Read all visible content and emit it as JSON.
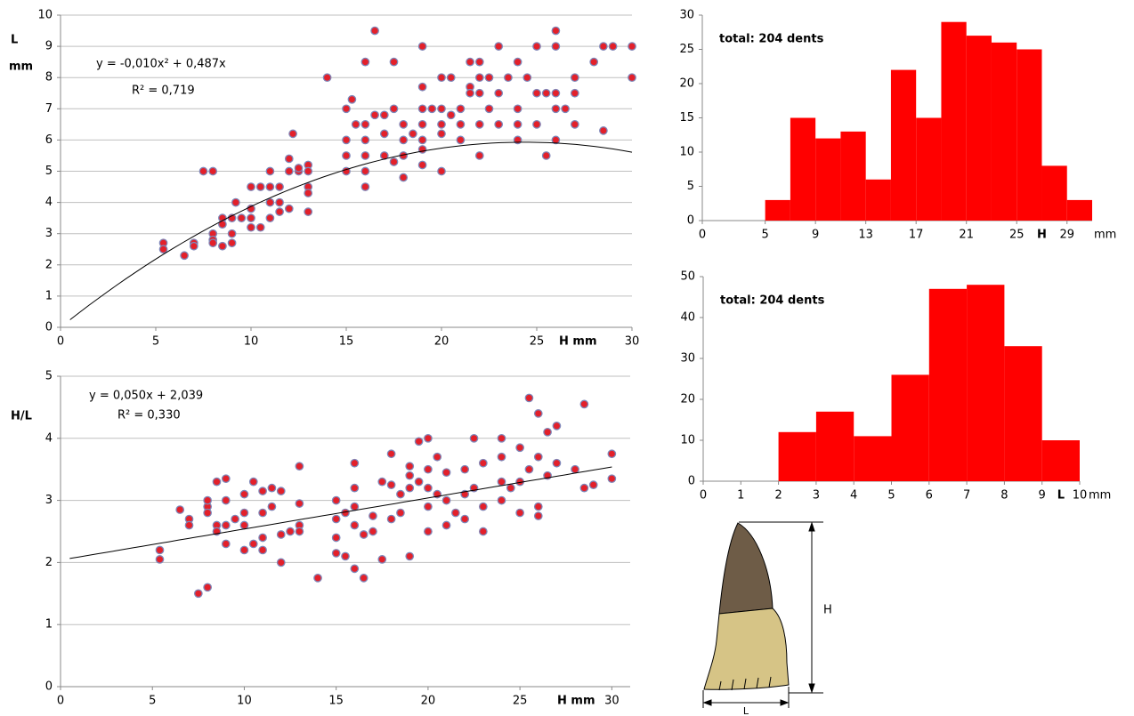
{
  "chart_data": [
    {
      "type": "scatter",
      "x_label": "H mm",
      "y_label": "L",
      "y_unit": "mm",
      "equation": "y = -0,010x² + 0,487x",
      "r_squared": "R² = 0,719",
      "trendline": {
        "coefficients": [
          -0.01,
          0.487,
          0
        ]
      },
      "xlim": [
        0,
        30
      ],
      "xticks": [
        0,
        5,
        10,
        15,
        20,
        25,
        30
      ],
      "ylim": [
        0,
        10
      ],
      "yticks": [
        0,
        1,
        2,
        3,
        4,
        5,
        6,
        7,
        8,
        9,
        10
      ],
      "grid": true,
      "color": "#e3202a",
      "edge_color": "#7f86b8",
      "x": [
        5.4,
        5.4,
        6.5,
        7,
        7,
        7.5,
        8,
        8,
        8,
        8,
        8.5,
        8.5,
        8.5,
        9,
        9,
        9,
        9.2,
        9.5,
        10,
        10,
        10,
        10,
        10.5,
        10.5,
        11,
        11,
        11,
        11,
        11.5,
        11.5,
        11.5,
        12,
        12,
        12,
        12.2,
        12.5,
        12.5,
        13,
        13,
        13,
        13,
        13,
        14,
        15,
        15,
        15,
        15,
        15.3,
        15.5,
        16,
        16,
        16,
        16,
        16,
        16,
        16.5,
        16.5,
        17,
        17,
        17,
        17.5,
        17.5,
        17.5,
        18,
        18,
        18,
        18,
        18.5,
        19,
        19,
        19,
        19,
        19,
        19,
        19,
        19.5,
        20,
        20,
        20,
        20,
        20,
        20.5,
        20.5,
        21,
        21,
        21,
        21.5,
        21.5,
        21.5,
        22,
        22,
        22,
        22,
        22,
        22.5,
        22.5,
        23,
        23,
        23,
        23.5,
        24,
        24,
        24,
        24,
        24.5,
        25,
        25,
        25,
        25.5,
        25.5,
        26,
        26,
        26,
        26,
        26,
        26.5,
        27,
        27,
        27,
        28,
        28.5,
        28.5,
        29,
        30,
        30
      ],
      "values": [
        2.7,
        2.5,
        2.3,
        2.7,
        2.6,
        5,
        5,
        3,
        2.8,
        2.7,
        3.5,
        2.6,
        3.3,
        3,
        2.7,
        3.5,
        4,
        3.5,
        4.5,
        3.8,
        3.2,
        3.5,
        4.5,
        3.2,
        5,
        4.5,
        4,
        3.5,
        4.5,
        4,
        3.7,
        5.4,
        5,
        3.8,
        6.2,
        5,
        5.1,
        5.2,
        5,
        4.5,
        4.3,
        3.7,
        8,
        7,
        6,
        5.5,
        5,
        7.3,
        6.5,
        8.5,
        6.5,
        6,
        5.5,
        5,
        4.5,
        9.5,
        6.8,
        6.8,
        6.2,
        5.5,
        8.5,
        7,
        5.3,
        6.5,
        6,
        5.5,
        4.8,
        6.2,
        9,
        7.7,
        7,
        6.5,
        6,
        5.7,
        5.2,
        7,
        8,
        7,
        6.5,
        6.2,
        5,
        8,
        6.8,
        7,
        6.5,
        6,
        8.5,
        7.7,
        7.5,
        8.5,
        8,
        7.5,
        6.5,
        5.5,
        8,
        7,
        9,
        7.5,
        6.5,
        8,
        8.5,
        7,
        6.5,
        6,
        8,
        9,
        7.5,
        6.5,
        7.5,
        5.5,
        9.5,
        9,
        7.5,
        7,
        6,
        7,
        8,
        7.5,
        6.5,
        8.5,
        6.3,
        9,
        9,
        9,
        8
      ]
    },
    {
      "type": "scatter",
      "x_label": "H mm",
      "y_label": "H/L",
      "equation": "y = 0,050x + 2,039",
      "r_squared": "R² = 0,330",
      "trendline": {
        "coefficients": [
          0.05,
          2.039
        ]
      },
      "xlim": [
        0,
        31
      ],
      "xticks": [
        0,
        5,
        10,
        15,
        20,
        25,
        30
      ],
      "ylim": [
        0,
        5
      ],
      "yticks": [
        0,
        1,
        2,
        3,
        4,
        5
      ],
      "grid": true,
      "color": "#e3202a",
      "edge_color": "#7f86b8",
      "x": [
        5.4,
        5.4,
        6.5,
        7,
        7,
        7.5,
        8,
        8,
        8,
        8,
        8.5,
        8.5,
        8.5,
        9,
        9,
        9,
        9,
        9.5,
        10,
        10,
        10,
        10,
        10.5,
        10.5,
        11,
        11,
        11,
        11,
        11.5,
        11.5,
        12,
        12,
        12,
        12.5,
        13,
        13,
        13,
        13,
        14,
        15,
        15,
        15,
        15,
        15.5,
        15.5,
        16,
        16,
        16,
        16,
        16,
        16.5,
        16.5,
        17,
        17,
        17.5,
        17.5,
        18,
        18,
        18,
        18.5,
        18.5,
        19,
        19,
        19,
        19,
        19.5,
        19.5,
        20,
        20,
        20,
        20,
        20,
        20.5,
        20.5,
        21,
        21,
        21,
        21.5,
        22,
        22,
        22,
        22.5,
        22.5,
        23,
        23,
        23,
        24,
        24,
        24,
        24,
        24.5,
        25,
        25,
        25,
        25.5,
        25.5,
        26,
        26,
        26,
        26,
        26.5,
        26.5,
        27,
        27,
        28,
        28.5,
        28.5,
        29,
        30,
        30
      ],
      "values": [
        2.2,
        2.05,
        2.85,
        2.7,
        2.6,
        1.5,
        1.6,
        2.9,
        3,
        2.8,
        2.6,
        3.3,
        2.5,
        3.35,
        3,
        2.6,
        2.3,
        2.7,
        3.1,
        2.8,
        2.6,
        2.2,
        3.3,
        2.3,
        3.15,
        2.8,
        2.4,
        2.2,
        3.2,
        2.9,
        3.15,
        2.45,
        2,
        2.5,
        3.55,
        2.95,
        2.6,
        2.5,
        1.75,
        3,
        2.7,
        2.4,
        2.15,
        2.1,
        2.8,
        3.6,
        3.2,
        2.9,
        2.6,
        1.9,
        2.45,
        1.75,
        2.75,
        2.5,
        2.05,
        3.3,
        3.75,
        3.25,
        2.7,
        3.1,
        2.8,
        3.55,
        3.4,
        3.2,
        2.1,
        3.95,
        3.3,
        4,
        3.5,
        3.2,
        2.9,
        2.5,
        3.7,
        3.1,
        3.45,
        3,
        2.6,
        2.8,
        3.5,
        3.1,
        2.7,
        4,
        3.2,
        3.6,
        2.9,
        2.5,
        4,
        3.7,
        3.3,
        3,
        3.2,
        3.85,
        3.3,
        2.8,
        4.65,
        3.5,
        4.4,
        3.7,
        2.9,
        2.75,
        4.1,
        3.4,
        4.2,
        3.6,
        3.5,
        4.55,
        3.2,
        3.25,
        3.75,
        3.35
      ]
    },
    {
      "type": "histogram",
      "annotation": "total: 204 dents",
      "x_label": "H",
      "x_unit": "mm",
      "color": "#ff0000",
      "grid": false,
      "bins": [
        5,
        7,
        9,
        11,
        13,
        15,
        17,
        19,
        21,
        23,
        25,
        27,
        29,
        31
      ],
      "values": [
        3,
        15,
        12,
        13,
        6,
        22,
        15,
        29,
        27,
        26,
        25,
        8,
        3
      ],
      "xlim": [
        0,
        31
      ],
      "xticks": [
        0,
        5,
        9,
        13,
        17,
        21,
        25,
        29
      ],
      "ylim": [
        0,
        30
      ],
      "yticks": [
        0,
        5,
        10,
        15,
        20,
        25,
        30
      ]
    },
    {
      "type": "histogram",
      "annotation": "total: 204 dents",
      "x_label": "L",
      "x_unit": "mm",
      "color": "#ff0000",
      "grid": false,
      "bins": [
        2,
        3,
        4,
        5,
        6,
        7,
        8,
        9,
        10
      ],
      "values": [
        12,
        17,
        11,
        26,
        47,
        48,
        33,
        10
      ],
      "xlim": [
        0,
        10
      ],
      "xticks": [
        0,
        1,
        2,
        3,
        4,
        5,
        6,
        7,
        8,
        9,
        10
      ],
      "ylim": [
        0,
        50
      ],
      "yticks": [
        0,
        10,
        20,
        30,
        40,
        50
      ]
    }
  ],
  "diagram": {
    "height_label": "H",
    "width_label": "L"
  }
}
